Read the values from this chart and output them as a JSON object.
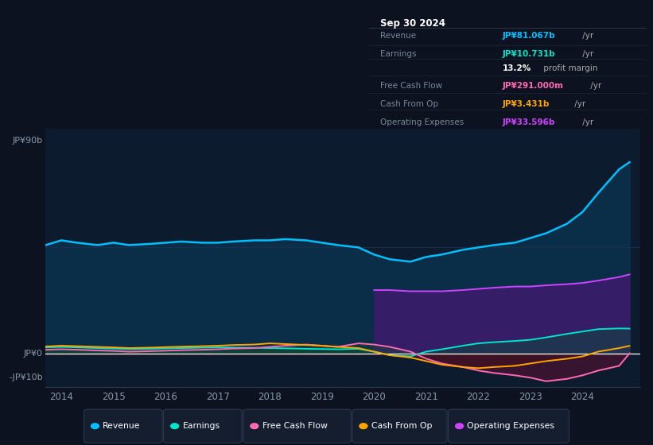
{
  "background_color": "#0c1220",
  "plot_bg_color": "#0d1b2e",
  "ylabel_top": "JP¥90b",
  "ylabel_zero": "JP¥0",
  "ylabel_neg": "-JP¥10b",
  "years": [
    2013.7,
    2014.0,
    2014.3,
    2014.7,
    2015.0,
    2015.3,
    2015.7,
    2016.0,
    2016.3,
    2016.7,
    2017.0,
    2017.3,
    2017.7,
    2018.0,
    2018.3,
    2018.7,
    2019.0,
    2019.3,
    2019.7,
    2020.0,
    2020.3,
    2020.7,
    2021.0,
    2021.3,
    2021.7,
    2022.0,
    2022.3,
    2022.7,
    2023.0,
    2023.3,
    2023.7,
    2024.0,
    2024.3,
    2024.7,
    2024.9
  ],
  "revenue": [
    46,
    48,
    47,
    46,
    47,
    46,
    46.5,
    47,
    47.5,
    47,
    47,
    47.5,
    48,
    48,
    48.5,
    48,
    47,
    46,
    45,
    42,
    40,
    39,
    41,
    42,
    44,
    45,
    46,
    47,
    49,
    51,
    55,
    60,
    68,
    78,
    81
  ],
  "earnings": [
    2.8,
    3.0,
    2.8,
    2.5,
    2.3,
    2.1,
    2.2,
    2.4,
    2.5,
    2.7,
    2.8,
    2.7,
    2.6,
    2.5,
    2.4,
    2.2,
    2.1,
    2.0,
    2.2,
    1.0,
    -0.5,
    -1.0,
    1.0,
    2.0,
    3.5,
    4.5,
    5.0,
    5.5,
    6.0,
    7.0,
    8.5,
    9.5,
    10.5,
    10.8,
    10.731
  ],
  "free_cash_flow": [
    1.8,
    2.0,
    1.8,
    1.5,
    1.3,
    1.0,
    1.2,
    1.4,
    1.6,
    1.8,
    2.0,
    2.3,
    2.5,
    3.0,
    3.5,
    4.0,
    3.5,
    3.0,
    4.5,
    4.0,
    3.0,
    1.0,
    -2.0,
    -4.0,
    -5.5,
    -7.0,
    -8.0,
    -9.0,
    -10.0,
    -11.5,
    -10.5,
    -9.0,
    -7.0,
    -5.0,
    0.291
  ],
  "cash_from_op": [
    3.2,
    3.5,
    3.3,
    3.0,
    2.8,
    2.5,
    2.7,
    2.9,
    3.1,
    3.3,
    3.5,
    3.8,
    4.0,
    4.5,
    4.2,
    3.8,
    3.5,
    3.0,
    2.5,
    1.0,
    -0.5,
    -1.5,
    -3.0,
    -4.5,
    -5.5,
    -6.0,
    -5.5,
    -5.0,
    -4.0,
    -3.0,
    -2.0,
    -1.0,
    1.0,
    2.5,
    3.431
  ],
  "op_expenses": [
    0,
    0,
    0,
    0,
    0,
    0,
    0,
    0,
    0,
    0,
    0,
    0,
    0,
    0,
    0,
    0,
    0,
    0,
    0,
    27,
    27,
    26.5,
    26.5,
    26.5,
    27,
    27.5,
    28,
    28.5,
    28.5,
    29,
    29.5,
    30,
    31,
    32.5,
    33.596
  ],
  "revenue_color": "#00bfff",
  "earnings_color": "#00e5cc",
  "free_cash_flow_color": "#ff69b4",
  "cash_from_op_color": "#ffa500",
  "op_expenses_color": "#cc44ff",
  "revenue_fill_alpha": 0.75,
  "op_expenses_fill_alpha": 0.85,
  "xlim": [
    2013.7,
    2025.1
  ],
  "ylim": [
    -14,
    95
  ],
  "xticks": [
    2014,
    2015,
    2016,
    2017,
    2018,
    2019,
    2020,
    2021,
    2022,
    2023,
    2024
  ],
  "info_box": {
    "title": "Sep 30 2024",
    "rows": [
      {
        "label": "Revenue",
        "value": "JP¥81.067b",
        "value_color": "#00bfff",
        "suffix": " /yr"
      },
      {
        "label": "Earnings",
        "value": "JP¥10.731b",
        "value_color": "#00e5cc",
        "suffix": " /yr"
      },
      {
        "label": "",
        "value": "13.2%",
        "value_color": "#ffffff",
        "suffix": " profit margin"
      },
      {
        "label": "Free Cash Flow",
        "value": "JP¥291.000m",
        "value_color": "#ff69b4",
        "suffix": " /yr"
      },
      {
        "label": "Cash From Op",
        "value": "JP¥3.431b",
        "value_color": "#ffa500",
        "suffix": " /yr"
      },
      {
        "label": "Operating Expenses",
        "value": "JP¥33.596b",
        "value_color": "#cc44ff",
        "suffix": " /yr"
      }
    ]
  },
  "legend": [
    {
      "label": "Revenue",
      "color": "#00bfff"
    },
    {
      "label": "Earnings",
      "color": "#00e5cc"
    },
    {
      "label": "Free Cash Flow",
      "color": "#ff69b4"
    },
    {
      "label": "Cash From Op",
      "color": "#ffa500"
    },
    {
      "label": "Operating Expenses",
      "color": "#cc44ff"
    }
  ]
}
